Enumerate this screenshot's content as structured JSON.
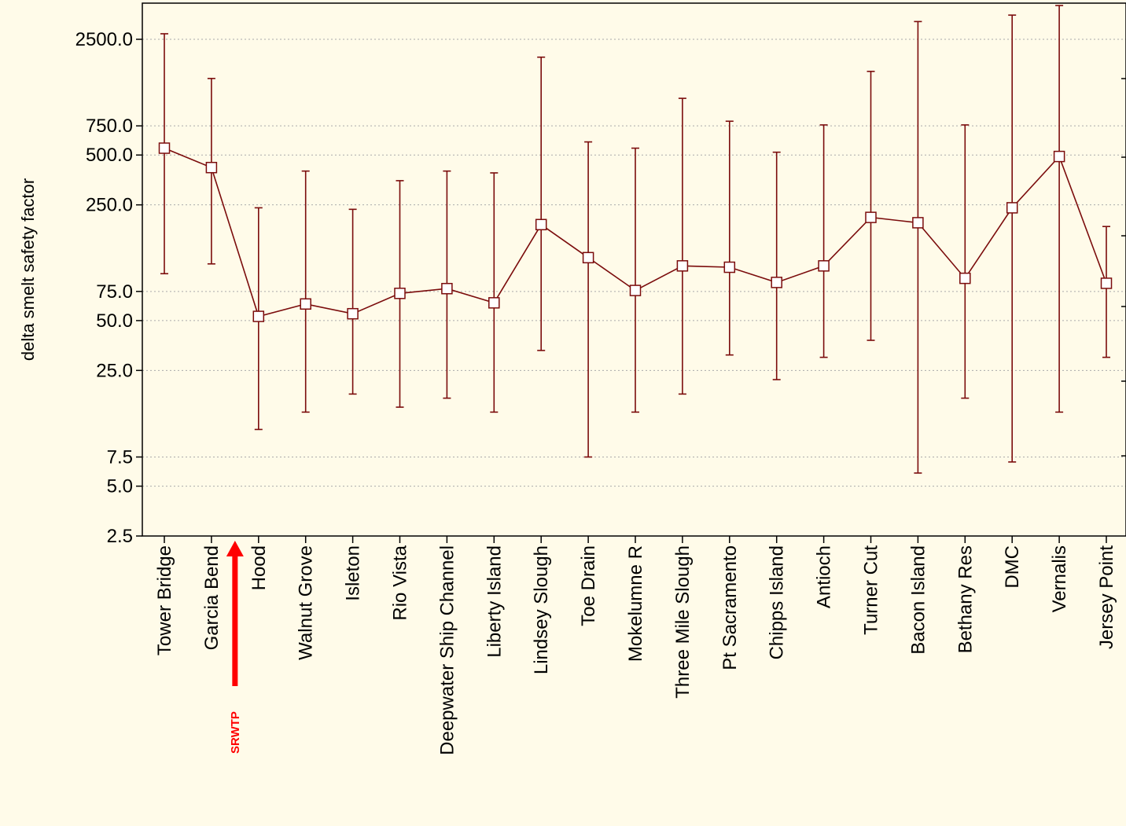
{
  "chart_data": {
    "type": "line",
    "ylabel": "delta smelt safety factor",
    "yscale": "log",
    "ylim": [
      2.5,
      4000
    ],
    "y_ticks": [
      2500.0,
      750.0,
      500.0,
      250.0,
      75.0,
      50.0,
      25.0,
      7.5,
      5.0,
      2.5
    ],
    "y_tick_labels": [
      "2500.0",
      "750.0",
      "500.0",
      "250.0",
      "75.0",
      "50.0",
      "25.0",
      "7.5",
      "5.0",
      "2.5"
    ],
    "grid": true,
    "categories": [
      "Tower Bridge",
      "Garcia Bend",
      "Hood",
      "Walnut Grove",
      "Isleton",
      "Rio Vista",
      "Deepwater Ship Channel",
      "Liberty Island",
      "Lindsey Slough",
      "Toe Drain",
      "Mokelumne R",
      "Three Mile Slough",
      "Pt Sacramento",
      "Chipps Island",
      "Antioch",
      "Turner Cut",
      "Bacon Island",
      "Bethany Res",
      "DMC",
      "Vernalis",
      "Jersey Point"
    ],
    "series": [
      {
        "values": [
          550,
          420,
          53,
          63,
          55,
          73,
          78,
          64,
          190,
          120,
          76,
          107,
          105,
          85,
          107,
          210,
          195,
          90,
          240,
          490,
          84
        ],
        "lower": [
          96,
          110,
          11,
          14,
          18,
          15,
          17,
          14,
          33,
          7.5,
          14,
          18,
          31,
          22,
          30,
          38,
          6,
          17,
          7,
          14,
          30
        ],
        "upper": [
          2700,
          1450,
          240,
          400,
          235,
          350,
          400,
          390,
          1950,
          600,
          550,
          1100,
          800,
          520,
          760,
          1600,
          3200,
          760,
          3500,
          4000,
          185
        ]
      }
    ],
    "color": "#7b0c0c",
    "annotations": [
      {
        "text": "SRWTP",
        "position": "between Garcia Bend and Hood",
        "color": "#ff0000"
      }
    ]
  }
}
